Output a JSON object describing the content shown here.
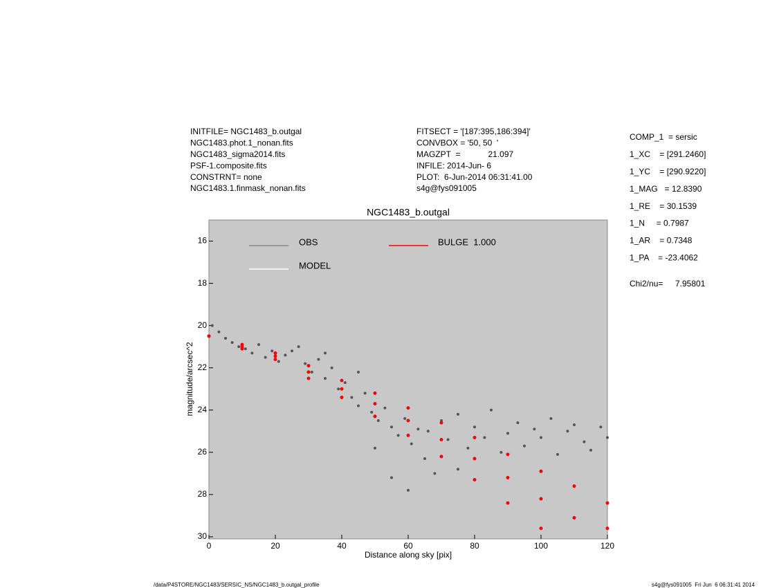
{
  "header": {
    "left": [
      "INITFILE= NGC1483_b.outgal",
      "NGC1483.phot.1_nonan.fits",
      "NGC1483_sigma2014.fits",
      "PSF-1.composite.fits",
      "CONSTRNT= none",
      "NGC1483.1.finmask_nonan.fits"
    ],
    "middle": [
      "FITSECT = '[187:395,186:394]'",
      "CONVBOX = '50, 50  '",
      "MAGZPT  =            21.097",
      "INFILE: 2014-Jun- 6",
      "PLOT:  6-Jun-2014 06:31:41.00",
      "s4g@fys091005"
    ],
    "params": [
      "COMP_1  = sersic",
      "1_XC    = [291.2460]",
      "1_YC    = [290.9220]",
      "1_MAG   = 12.8390",
      "1_RE    = 30.1539",
      "1_N     = 0.7987",
      "1_AR    = 0.7348",
      "1_PA    = -23.4062"
    ],
    "chi2_label": "Chi2/nu=",
    "chi2_value": "7.95801"
  },
  "footer": {
    "left": "/data/P4STORE/NGC1483/SERSIC_NS/NGC1483_b.outgal_profile",
    "right": "s4g@fys091005  Fri Jun  6 06:31:41 2014"
  },
  "chart_data": {
    "type": "scatter",
    "title": "NGC1483_b.outgal",
    "x_label": "Distance along sky [pix]",
    "y_label": "magnitude/arcsec^2",
    "xlim": [
      0,
      120
    ],
    "xticks": [
      0,
      20,
      40,
      60,
      80,
      100,
      120
    ],
    "ylim": [
      15,
      30.1
    ],
    "y_inverted": true,
    "yticks": [
      16,
      18,
      20,
      22,
      24,
      26,
      28,
      30
    ],
    "background": "#c8c8c8",
    "series": [
      {
        "name": "OBS",
        "color": "#555555",
        "x": [
          1,
          3,
          5,
          7,
          9,
          11,
          13,
          15,
          17,
          19,
          21,
          23,
          25,
          27,
          29,
          31,
          33,
          35,
          37,
          39,
          41,
          43,
          45,
          47,
          49,
          51,
          53,
          55,
          57,
          59,
          61,
          63,
          65,
          55,
          60,
          66,
          70,
          72,
          75,
          78,
          80,
          83,
          85,
          88,
          90,
          93,
          95,
          98,
          100,
          103,
          105,
          108,
          110,
          113,
          115,
          118,
          120,
          68,
          75,
          50,
          45,
          35
        ],
        "values": [
          20.0,
          20.3,
          20.6,
          20.8,
          21.0,
          21.1,
          21.3,
          20.9,
          21.5,
          21.2,
          21.7,
          21.4,
          21.2,
          21.0,
          21.8,
          22.2,
          21.6,
          22.5,
          22.0,
          23.0,
          22.7,
          23.4,
          23.8,
          23.2,
          24.1,
          24.5,
          23.9,
          24.8,
          25.2,
          24.4,
          25.6,
          24.9,
          26.3,
          27.2,
          27.8,
          25.0,
          24.5,
          25.4,
          24.2,
          25.8,
          24.8,
          25.3,
          24.0,
          26.0,
          25.1,
          24.6,
          25.7,
          24.9,
          25.3,
          24.4,
          26.1,
          25.0,
          24.7,
          25.5,
          25.9,
          24.8,
          25.3,
          27.0,
          26.8,
          25.8,
          22.2,
          21.3
        ]
      },
      {
        "name": "MODEL",
        "color": "#ffffff",
        "x": [],
        "values": []
      },
      {
        "name": "BULGE  1.000",
        "color": "#ff0000",
        "x": [
          0,
          10,
          20,
          30,
          40,
          50,
          60,
          70,
          80,
          90,
          100,
          110,
          120,
          0,
          10,
          20,
          30,
          40,
          50,
          60,
          70,
          80,
          90,
          100,
          110,
          120,
          10,
          20,
          30,
          40,
          50,
          60,
          70,
          80,
          90,
          100
        ],
        "values": [
          20.5,
          20.9,
          21.3,
          21.9,
          22.6,
          23.2,
          23.9,
          24.6,
          25.3,
          26.1,
          26.9,
          27.6,
          28.4,
          20.5,
          21.0,
          21.45,
          22.2,
          23.0,
          23.7,
          24.5,
          25.4,
          26.3,
          27.2,
          28.2,
          29.1,
          29.6,
          21.1,
          21.6,
          22.5,
          23.4,
          24.3,
          25.2,
          26.2,
          27.3,
          28.4,
          29.6
        ]
      }
    ]
  }
}
